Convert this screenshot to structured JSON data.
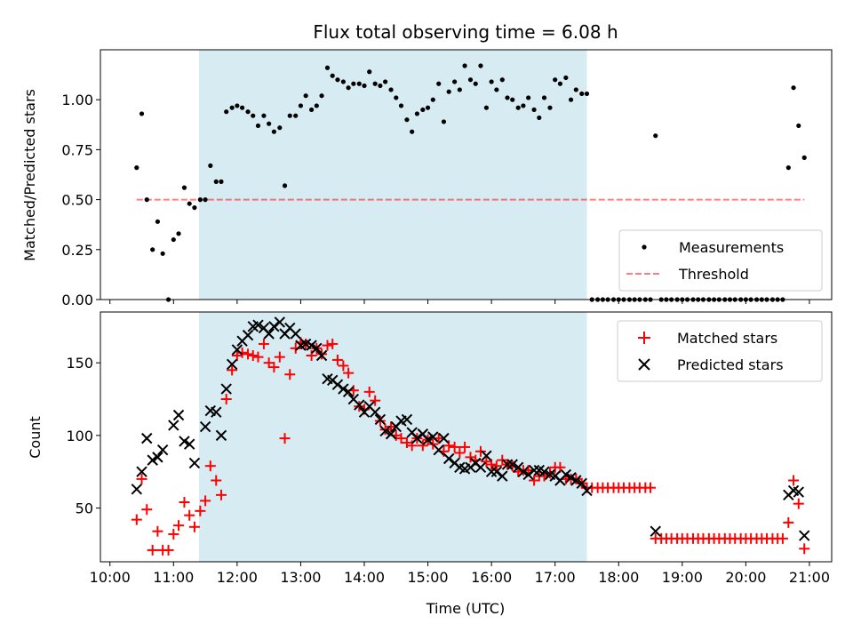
{
  "title": "Flux total observing time = 6.08 h",
  "colors": {
    "shade": "#add8e6",
    "threshold": "#ff0000",
    "matched": "#ff0000",
    "predicted": "#000000",
    "measurements": "#000000"
  },
  "chart_data": [
    {
      "type": "scatter",
      "panel": "top",
      "ylabel": "Matched/Predicted stars",
      "xlim": [
        9.85,
        21.35
      ],
      "ylim": [
        0.0,
        1.25
      ],
      "yticks": [
        0.0,
        0.25,
        0.5,
        0.75,
        1.0
      ],
      "ytick_labels": [
        "0.00",
        "0.25",
        "0.50",
        "0.75",
        "1.00"
      ],
      "shaded_span": [
        11.4,
        17.5
      ],
      "legend_position": "lower-right",
      "series": [
        {
          "name": "Measurements",
          "kind": "points",
          "x": [
            10.42,
            10.5,
            10.58,
            10.67,
            10.75,
            10.83,
            10.92,
            11.0,
            11.08,
            11.17,
            11.25,
            11.33,
            11.42,
            11.5,
            11.58,
            11.67,
            11.75,
            11.83,
            11.92,
            12.0,
            12.08,
            12.17,
            12.25,
            12.33,
            12.42,
            12.5,
            12.58,
            12.67,
            12.75,
            12.83,
            12.92,
            13.0,
            13.08,
            13.17,
            13.25,
            13.33,
            13.42,
            13.5,
            13.58,
            13.67,
            13.75,
            13.83,
            13.92,
            14.0,
            14.08,
            14.17,
            14.25,
            14.33,
            14.42,
            14.5,
            14.58,
            14.67,
            14.75,
            14.83,
            14.92,
            15.0,
            15.08,
            15.17,
            15.25,
            15.33,
            15.42,
            15.5,
            15.58,
            15.67,
            15.75,
            15.83,
            15.92,
            16.0,
            16.08,
            16.17,
            16.25,
            16.33,
            16.42,
            16.5,
            16.58,
            16.67,
            16.75,
            16.83,
            16.92,
            17.0,
            17.08,
            17.17,
            17.25,
            17.33,
            17.42,
            17.5,
            17.58,
            17.67,
            17.75,
            17.83,
            17.92,
            18.0,
            18.08,
            18.17,
            18.25,
            18.33,
            18.42,
            18.5,
            18.58,
            18.67,
            18.75,
            18.83,
            18.92,
            19.0,
            19.08,
            19.17,
            19.25,
            19.33,
            19.42,
            19.5,
            19.58,
            19.67,
            19.75,
            19.83,
            19.92,
            20.0,
            20.08,
            20.17,
            20.25,
            20.33,
            20.42,
            20.5,
            20.58,
            20.67,
            20.75,
            20.83,
            20.92
          ],
          "y": [
            0.66,
            0.93,
            0.5,
            0.25,
            0.39,
            0.23,
            0.0,
            0.3,
            0.33,
            0.56,
            0.48,
            0.46,
            0.5,
            0.5,
            0.67,
            0.59,
            0.59,
            0.94,
            0.96,
            0.97,
            0.96,
            0.94,
            0.92,
            0.87,
            0.92,
            0.88,
            0.84,
            0.86,
            0.57,
            0.92,
            0.92,
            0.97,
            1.02,
            0.95,
            0.97,
            1.02,
            1.16,
            1.12,
            1.1,
            1.09,
            1.06,
            1.08,
            1.08,
            1.07,
            1.14,
            1.08,
            1.07,
            1.09,
            1.05,
            1.01,
            0.97,
            0.9,
            0.84,
            0.93,
            0.95,
            0.96,
            1.0,
            1.08,
            0.89,
            1.04,
            1.09,
            1.05,
            1.17,
            1.1,
            1.08,
            1.17,
            0.96,
            1.09,
            1.05,
            1.1,
            1.01,
            1.0,
            0.96,
            0.97,
            1.01,
            0.95,
            0.91,
            1.01,
            0.96,
            1.1,
            1.08,
            1.11,
            1.0,
            1.05,
            1.03,
            1.03,
            0.0,
            0.0,
            0.0,
            0.0,
            0.0,
            0.0,
            0.0,
            0.0,
            0.0,
            0.0,
            0.0,
            0.0,
            0.82,
            0.0,
            0.0,
            0.0,
            0.0,
            0.0,
            0.0,
            0.0,
            0.0,
            0.0,
            0.0,
            0.0,
            0.0,
            0.0,
            0.0,
            0.0,
            0.0,
            0.0,
            0.0,
            0.0,
            0.0,
            0.0,
            0.0,
            0.0,
            0.0,
            0.66,
            1.06,
            0.87,
            0.71
          ]
        },
        {
          "name": "Threshold",
          "kind": "dashed-line",
          "x": [
            10.42,
            20.92
          ],
          "y": [
            0.5,
            0.5
          ]
        }
      ]
    },
    {
      "type": "scatter",
      "panel": "bottom",
      "xlabel": "Time (UTC)",
      "ylabel": "Count",
      "xlim": [
        9.85,
        21.35
      ],
      "ylim": [
        13,
        185
      ],
      "yticks": [
        50,
        100,
        150
      ],
      "ytick_labels": [
        "50",
        "100",
        "150"
      ],
      "xticks": [
        10,
        11,
        12,
        13,
        14,
        15,
        16,
        17,
        18,
        19,
        20,
        21
      ],
      "xtick_labels": [
        "10:00",
        "11:00",
        "12:00",
        "13:00",
        "14:00",
        "15:00",
        "16:00",
        "17:00",
        "18:00",
        "19:00",
        "20:00",
        "21:00"
      ],
      "shaded_span": [
        11.4,
        17.5
      ],
      "legend_position": "top-right",
      "series": [
        {
          "name": "Matched stars",
          "marker": "plus",
          "x": [
            10.42,
            10.5,
            10.58,
            10.67,
            10.75,
            10.83,
            10.92,
            11.0,
            11.08,
            11.17,
            11.25,
            11.33,
            11.42,
            11.5,
            11.58,
            11.67,
            11.75,
            11.83,
            11.92,
            12.0,
            12.08,
            12.17,
            12.25,
            12.33,
            12.42,
            12.5,
            12.58,
            12.67,
            12.75,
            12.83,
            12.92,
            13.0,
            13.08,
            13.17,
            13.25,
            13.33,
            13.42,
            13.5,
            13.58,
            13.67,
            13.75,
            13.83,
            13.92,
            14.0,
            14.08,
            14.17,
            14.25,
            14.33,
            14.42,
            14.5,
            14.58,
            14.67,
            14.75,
            14.83,
            14.92,
            15.0,
            15.08,
            15.17,
            15.25,
            15.33,
            15.42,
            15.5,
            15.58,
            15.67,
            15.75,
            15.83,
            15.92,
            16.0,
            16.08,
            16.17,
            16.25,
            16.33,
            16.42,
            16.5,
            16.58,
            16.67,
            16.75,
            16.83,
            16.92,
            17.0,
            17.08,
            17.17,
            17.25,
            17.33,
            17.42,
            17.5,
            17.58,
            17.67,
            17.75,
            17.83,
            17.92,
            18.0,
            18.08,
            18.17,
            18.25,
            18.33,
            18.42,
            18.5,
            18.58,
            18.67,
            18.75,
            18.83,
            18.92,
            19.0,
            19.08,
            19.17,
            19.25,
            19.33,
            19.42,
            19.5,
            19.58,
            19.67,
            19.75,
            19.83,
            19.92,
            20.0,
            20.08,
            20.17,
            20.25,
            20.33,
            20.42,
            20.5,
            20.58,
            20.67,
            20.75,
            20.83,
            20.92
          ],
          "y": [
            42,
            70,
            49,
            21,
            34,
            21,
            21,
            32,
            38,
            54,
            45,
            37,
            48,
            55,
            79,
            69,
            59,
            125,
            145,
            155,
            157,
            156,
            155,
            154,
            163,
            150,
            147,
            154,
            98,
            142,
            160,
            164,
            163,
            155,
            160,
            156,
            162,
            163,
            152,
            148,
            143,
            131,
            120,
            118,
            130,
            124,
            110,
            104,
            106,
            100,
            98,
            95,
            93,
            98,
            93,
            97,
            94,
            98,
            89,
            93,
            92,
            88,
            92,
            85,
            83,
            89,
            82,
            80,
            79,
            83,
            80,
            79,
            75,
            76,
            76,
            69,
            72,
            72,
            74,
            78,
            78,
            70,
            70,
            70,
            67,
            64,
            64,
            64,
            64,
            64,
            64,
            64,
            64,
            64,
            64,
            64,
            64,
            64,
            29,
            29,
            29,
            29,
            29,
            29,
            29,
            29,
            29,
            29,
            29,
            29,
            29,
            29,
            29,
            29,
            29,
            29,
            29,
            29,
            29,
            29,
            29,
            29,
            29,
            40,
            69,
            53,
            22
          ]
        },
        {
          "name": "Predicted stars",
          "marker": "x",
          "x": [
            10.42,
            10.5,
            10.58,
            10.67,
            10.75,
            10.83,
            11.0,
            11.08,
            11.17,
            11.25,
            11.33,
            11.5,
            11.58,
            11.67,
            11.75,
            11.83,
            11.92,
            12.0,
            12.08,
            12.17,
            12.25,
            12.33,
            12.42,
            12.5,
            12.58,
            12.67,
            12.75,
            12.83,
            12.92,
            13.0,
            13.08,
            13.17,
            13.25,
            13.33,
            13.42,
            13.5,
            13.58,
            13.67,
            13.75,
            13.83,
            13.92,
            14.0,
            14.08,
            14.17,
            14.25,
            14.33,
            14.42,
            14.5,
            14.58,
            14.67,
            14.75,
            14.83,
            14.92,
            15.0,
            15.08,
            15.17,
            15.25,
            15.33,
            15.42,
            15.5,
            15.58,
            15.67,
            15.75,
            15.83,
            15.92,
            16.0,
            16.08,
            16.17,
            16.25,
            16.33,
            16.42,
            16.5,
            16.58,
            16.67,
            16.75,
            16.83,
            16.92,
            17.0,
            17.08,
            17.17,
            17.25,
            17.33,
            17.42,
            17.5,
            18.58,
            20.67,
            20.75,
            20.83,
            20.92
          ],
          "y": [
            63,
            75,
            98,
            83,
            85,
            90,
            107,
            114,
            96,
            94,
            81,
            106,
            117,
            116,
            100,
            132,
            149,
            159,
            165,
            169,
            175,
            176,
            174,
            170,
            175,
            178,
            170,
            174,
            170,
            162,
            163,
            162,
            160,
            155,
            139,
            138,
            135,
            132,
            130,
            125,
            121,
            116,
            120,
            116,
            111,
            103,
            101,
            106,
            110,
            111,
            102,
            98,
            101,
            97,
            99,
            90,
            98,
            84,
            81,
            78,
            77,
            78,
            81,
            78,
            86,
            75,
            75,
            72,
            80,
            80,
            78,
            75,
            73,
            76,
            76,
            75,
            73,
            72,
            69,
            73,
            71,
            69,
            67,
            62,
            34,
            59,
            62,
            61,
            31
          ]
        }
      ]
    }
  ]
}
